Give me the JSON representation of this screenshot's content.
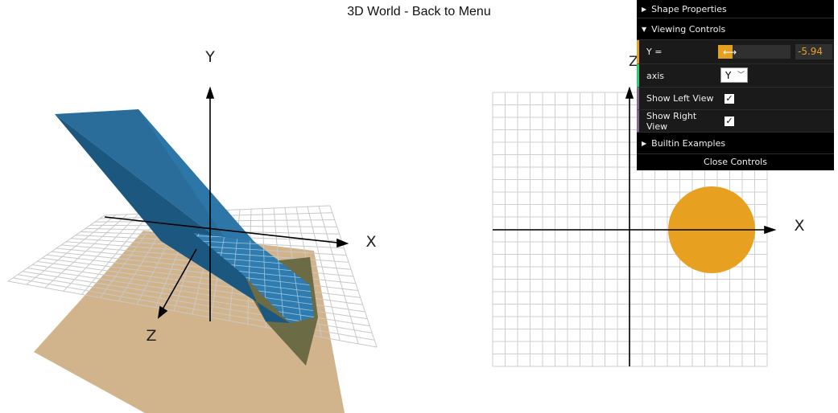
{
  "header": {
    "title": "3D World - Back to Menu"
  },
  "left_view": {
    "axis_x": "X",
    "axis_y": "Y",
    "axis_z": "Z"
  },
  "right_view": {
    "axis_x": "X",
    "axis_z": "Z",
    "slice_color": "#e8a020"
  },
  "colors": {
    "shape": "#1f5f8f",
    "floor": "#d2b48c",
    "accent": "#e6a01f"
  },
  "gui": {
    "shape_properties": "Shape Properties",
    "viewing_controls": "Viewing Controls",
    "y_label": "Y =",
    "y_value": "-5.94",
    "axis_label": "axis",
    "axis_selected": "Y",
    "show_left_label": "Show Left View",
    "show_left_checked": "✓",
    "show_right_label": "Show Right View",
    "show_right_checked": "✓",
    "builtin_examples": "Builtin Examples",
    "close_controls": "Close Controls"
  }
}
